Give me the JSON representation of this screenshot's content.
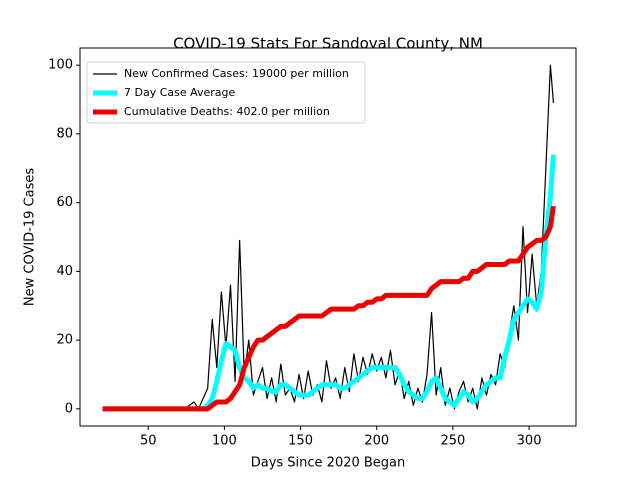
{
  "chart_data": {
    "type": "line",
    "title": "COVID-19 Stats For Sandoval County, NM",
    "xlabel": "Days Since 2020 Began",
    "ylabel": "New COVID-19 Cases",
    "x": [
      20,
      23,
      26,
      29,
      32,
      35,
      38,
      41,
      44,
      47,
      50,
      53,
      56,
      59,
      62,
      65,
      68,
      71,
      74,
      77,
      80,
      83,
      86,
      89,
      92,
      95,
      98,
      101,
      104,
      107,
      110,
      113,
      116,
      119,
      122,
      125,
      128,
      131,
      134,
      137,
      140,
      143,
      146,
      149,
      152,
      155,
      158,
      161,
      164,
      167,
      170,
      173,
      176,
      179,
      182,
      185,
      188,
      191,
      194,
      197,
      200,
      203,
      206,
      209,
      212,
      215,
      218,
      221,
      224,
      227,
      230,
      233,
      236,
      239,
      242,
      245,
      248,
      251,
      254,
      257,
      260,
      263,
      266,
      269,
      272,
      275,
      278,
      281,
      284,
      287,
      290,
      293,
      296,
      299,
      302,
      305,
      308,
      311,
      314,
      316
    ],
    "series": [
      {
        "name": "New Confirmed Cases: 19000 per million",
        "color": "#000000",
        "values": [
          0,
          0,
          0,
          0,
          0,
          0,
          0,
          0,
          0,
          0,
          0,
          0,
          0,
          0,
          0,
          0,
          0,
          0,
          0,
          1,
          2,
          0,
          3,
          6,
          26,
          12,
          34,
          18,
          36,
          8,
          49,
          10,
          20,
          4,
          8,
          12,
          3,
          9,
          2,
          13,
          4,
          6,
          2,
          10,
          3,
          11,
          4,
          7,
          2,
          14,
          6,
          9,
          3,
          12,
          5,
          16,
          8,
          15,
          10,
          16,
          11,
          15,
          9,
          17,
          7,
          11,
          3,
          8,
          1,
          6,
          2,
          10,
          28,
          4,
          12,
          1,
          6,
          0,
          5,
          8,
          2,
          6,
          0,
          9,
          4,
          10,
          7,
          16,
          12,
          22,
          30,
          20,
          53,
          28,
          45,
          30,
          40,
          70,
          100,
          89
        ]
      },
      {
        "name": "7 Day Case Average",
        "color": "#00ffff",
        "values": [
          0,
          0,
          0,
          0,
          0,
          0,
          0,
          0,
          0,
          0,
          0,
          0,
          0,
          0,
          0,
          0,
          0,
          0,
          0,
          0,
          0,
          0,
          0,
          1,
          3,
          8,
          14,
          19,
          18,
          17,
          12,
          9,
          8,
          6,
          7,
          6,
          6,
          5,
          5,
          7,
          7,
          6,
          5,
          4,
          4,
          4,
          5,
          6,
          7,
          7,
          7,
          7,
          6,
          6,
          7,
          8,
          9,
          10,
          11,
          12,
          12,
          12,
          12,
          12,
          12,
          10,
          7,
          5,
          4,
          3,
          3,
          5,
          8,
          9,
          6,
          3,
          2,
          1,
          3,
          5,
          4,
          2,
          3,
          5,
          7,
          8,
          9,
          9,
          15,
          20,
          26,
          28,
          30,
          32,
          31,
          29,
          34,
          50,
          62,
          74
        ]
      },
      {
        "name": "Cumulative Deaths: 402.0 per million",
        "color": "#ee0000",
        "values": [
          0,
          0,
          0,
          0,
          0,
          0,
          0,
          0,
          0,
          0,
          0,
          0,
          0,
          0,
          0,
          0,
          0,
          0,
          0,
          0,
          0,
          0,
          0,
          0,
          1,
          2,
          2,
          2,
          3,
          5,
          7,
          12,
          15,
          18,
          20,
          20,
          21,
          22,
          23,
          24,
          24,
          25,
          26,
          27,
          27,
          27,
          27,
          27,
          27,
          28,
          29,
          29,
          29,
          29,
          29,
          29,
          30,
          30,
          31,
          31,
          32,
          32,
          33,
          33,
          33,
          33,
          33,
          33,
          33,
          33,
          33,
          33,
          35,
          36,
          37,
          37,
          37,
          37,
          37,
          38,
          38,
          40,
          40,
          41,
          42,
          42,
          42,
          42,
          42,
          43,
          43,
          43,
          45,
          47,
          48,
          49,
          49,
          50,
          53,
          59
        ]
      }
    ],
    "xlim": [
      5.2,
      330.8
    ],
    "xticks": [
      50,
      100,
      150,
      200,
      250,
      300
    ],
    "ylim": [
      -5,
      105
    ],
    "yticks": [
      0,
      20,
      40,
      60,
      80,
      100
    ],
    "legend": "upper left",
    "grid": false
  }
}
